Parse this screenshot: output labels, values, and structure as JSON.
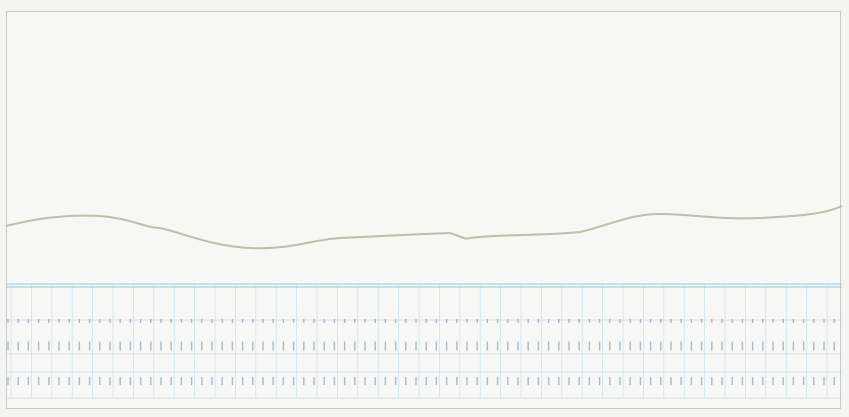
{
  "colors": {
    "background": "#f4f4f3",
    "trace_line": "#b9c2a3",
    "grid_lines": "#9ed0e6",
    "tick_marks": "#8aa6c8",
    "frame_border": "#c9c9c9"
  },
  "trace": {
    "description_icon": "baseline-trace"
  }
}
